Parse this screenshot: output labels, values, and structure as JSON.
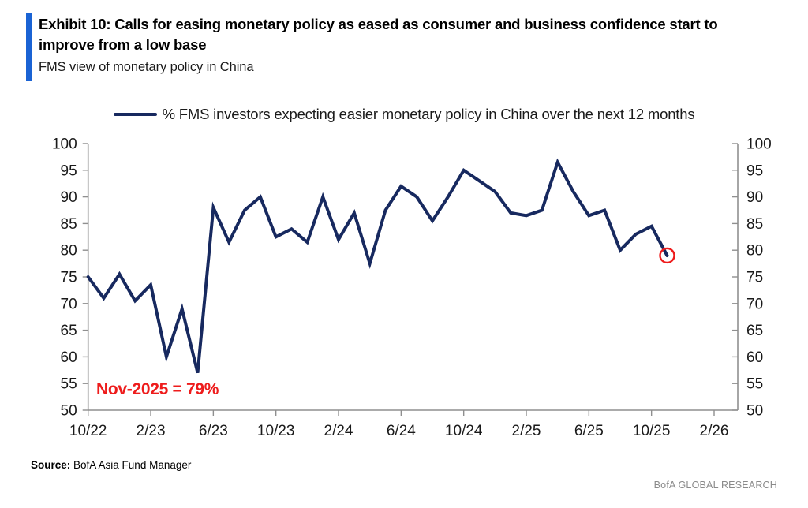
{
  "header": {
    "exhibit_title": "Exhibit 10: Calls for easing monetary policy as eased as consumer and business confidence start to improve from a low base",
    "subtitle": "FMS view of monetary policy in China",
    "accent_bar_color": "#1a63d4"
  },
  "legend": {
    "label": "% FMS investors expecting easier monetary policy in China over the next 12 months",
    "marker_color": "#17295f",
    "position": "top-center"
  },
  "chart_data": {
    "type": "line",
    "title": "% FMS investors expecting easier monetary policy in China over the next 12 months",
    "x": [
      "Oct-22",
      "Nov-22",
      "Dec-22",
      "Jan-23",
      "Feb-23",
      "Mar-23",
      "Apr-23",
      "May-23",
      "Jun-23",
      "Jul-23",
      "Aug-23",
      "Sep-23",
      "Oct-23",
      "Nov-23",
      "Dec-23",
      "Jan-24",
      "Feb-24",
      "Mar-24",
      "Apr-24",
      "May-24",
      "Jun-24",
      "Jul-24",
      "Aug-24",
      "Sep-24",
      "Oct-24",
      "Nov-24",
      "Dec-24",
      "Jan-25",
      "Feb-25",
      "Mar-25",
      "Apr-25",
      "May-25",
      "Jun-25",
      "Jul-25",
      "Aug-25",
      "Sep-25",
      "Oct-25",
      "Nov-25"
    ],
    "series": [
      {
        "name": "% FMS investors expecting easier monetary policy in China over the next 12 months",
        "color": "#17295f",
        "values": [
          75,
          71,
          75.5,
          70.5,
          73.5,
          60,
          69,
          57,
          88,
          81.5,
          87.5,
          90,
          82.5,
          84,
          81.5,
          90,
          82,
          87,
          77.5,
          87.5,
          92,
          90,
          85.5,
          90,
          95,
          93,
          91,
          87,
          86.5,
          87.5,
          96.5,
          91,
          86.5,
          87.5,
          80,
          83,
          84.5,
          79
        ]
      }
    ],
    "x_tick_labels": [
      "10/22",
      "2/23",
      "6/23",
      "10/23",
      "2/24",
      "6/24",
      "10/24",
      "2/25",
      "6/25",
      "10/25",
      "2/26"
    ],
    "y_tick_labels": [
      "100",
      "95",
      "90",
      "85",
      "80",
      "75",
      "70",
      "65",
      "60",
      "55",
      "50"
    ],
    "ylim": [
      50,
      100
    ],
    "ytick_step": 5,
    "grid": false,
    "dual_y_axis": true,
    "axis_color": "#8f8f8f",
    "tick_label_color": "#1a1a1a",
    "annotation": {
      "text": "Nov-2025 = 79%",
      "color": "#ee1c1c",
      "highlight_point": {
        "x": "Nov-25",
        "value": 79,
        "marker": "open-red-circle"
      }
    }
  },
  "footer": {
    "source_label": "Source:",
    "source_text": " BofA Asia Fund Manager",
    "branding": "BofA GLOBAL RESEARCH"
  }
}
